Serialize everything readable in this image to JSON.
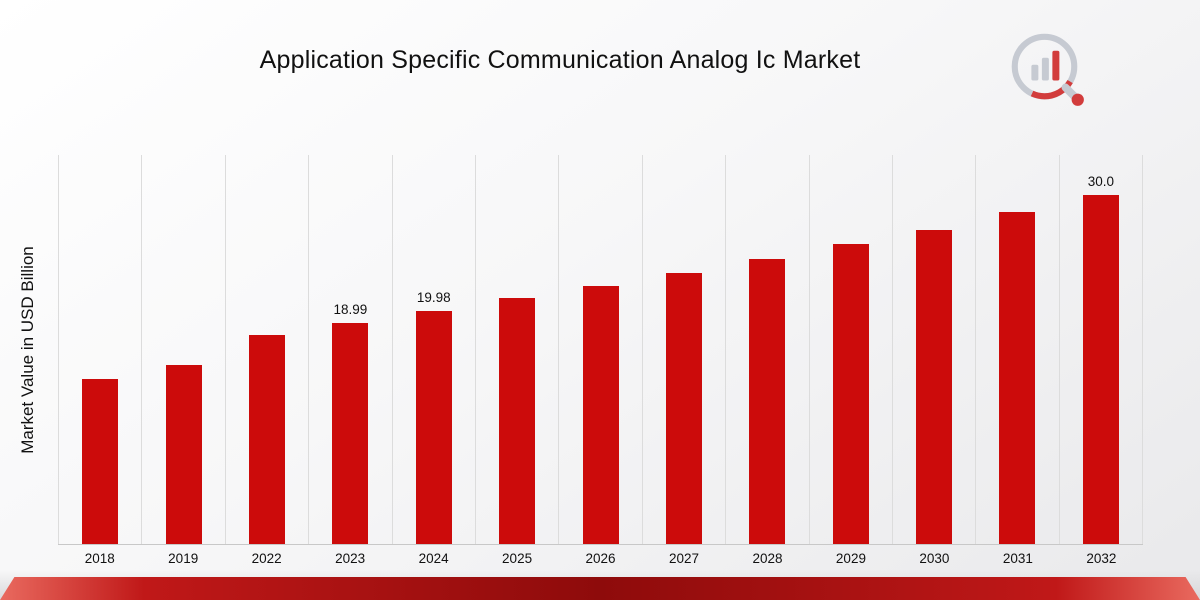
{
  "chart_data": {
    "type": "bar",
    "title": "Application Specific Communication Analog Ic Market",
    "xlabel": "",
    "ylabel": "Market Value in USD Billion",
    "categories": [
      "2018",
      "2019",
      "2022",
      "2023",
      "2024",
      "2025",
      "2026",
      "2027",
      "2028",
      "2029",
      "2030",
      "2031",
      "2032"
    ],
    "values": [
      14.2,
      15.4,
      17.95,
      18.99,
      19.98,
      21.1,
      22.2,
      23.3,
      24.5,
      25.8,
      27.0,
      28.5,
      30.0
    ],
    "data_labels": [
      "",
      "",
      "",
      "18.99",
      "19.98",
      "",
      "",
      "",
      "",
      "",
      "",
      "",
      "30.0"
    ],
    "ylim": [
      0,
      33.5
    ],
    "grid": "vertical-only",
    "legend": "none",
    "bar_color": "#cc0b0b"
  },
  "branding": {
    "logo_name": "market-research-chart-magnifier-logo",
    "accent_color": "#cc0b0b",
    "logo_gray": "#c6cad2"
  }
}
